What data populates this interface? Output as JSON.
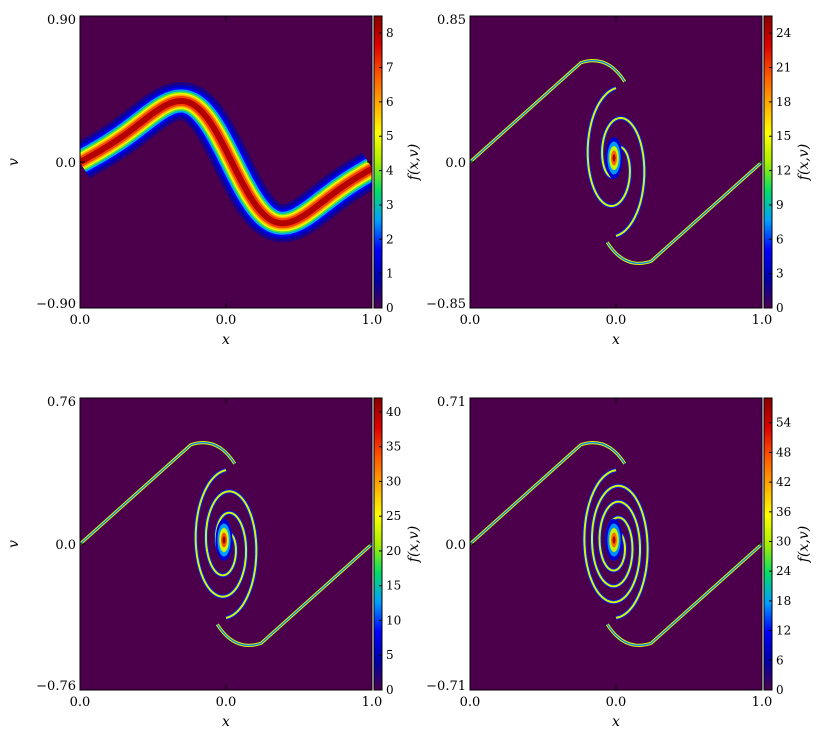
{
  "colormap": [
    "#4c004c",
    "#0000aa",
    "#0000ff",
    "#00a0ff",
    "#00dd66",
    "#aaee00",
    "#ffff00",
    "#ffaa00",
    "#ff5500",
    "#dd0000",
    "#880000"
  ],
  "background_color": "#4c004c",
  "chart_data": [
    {
      "type": "heatmap",
      "panel": "top-left",
      "xlabel": "x",
      "ylabel": "v",
      "colorbar_label": "f(x,v)",
      "xlim": [
        0.0,
        1.0
      ],
      "ylim": [
        -0.9,
        0.9
      ],
      "xtick_labels": [
        "0.0",
        "0.0",
        "1.0"
      ],
      "ytick_labels": [
        "0.90",
        "0.0",
        "−0.90"
      ],
      "colorbar_range": [
        0,
        8.5
      ],
      "colorbar_ticks": [
        "0",
        "1",
        "2",
        "3",
        "4",
        "5",
        "6",
        "7",
        "8"
      ],
      "shape": "sine-band",
      "feature": {
        "amplitude_v": 0.5,
        "peak_value": 8.5,
        "band_width": 0.06
      }
    },
    {
      "type": "heatmap",
      "panel": "top-right",
      "xlabel": "x",
      "ylabel": "",
      "colorbar_label": "f(x,v)",
      "xlim": [
        0.0,
        1.0
      ],
      "ylim": [
        -0.85,
        0.85
      ],
      "xtick_labels": [
        "0.0",
        "0.0",
        "1.0"
      ],
      "ytick_labels": [
        "0.85",
        "0.0",
        "−0.85"
      ],
      "colorbar_range": [
        0,
        25.5
      ],
      "colorbar_ticks": [
        "0",
        "3",
        "6",
        "9",
        "12",
        "15",
        "18",
        "21",
        "24"
      ],
      "shape": "spiral",
      "feature": {
        "spiral_turns": 0.5,
        "peak_value": 25
      }
    },
    {
      "type": "heatmap",
      "panel": "bottom-left",
      "xlabel": "x",
      "ylabel": "v",
      "colorbar_label": "f(x,v)",
      "xlim": [
        0.0,
        1.0
      ],
      "ylim": [
        -0.76,
        0.76
      ],
      "xtick_labels": [
        "0.0",
        "0.0",
        "1.0"
      ],
      "ytick_labels": [
        "0.76",
        "0.0",
        "−0.76"
      ],
      "colorbar_range": [
        0,
        42
      ],
      "colorbar_ticks": [
        "0",
        "5",
        "10",
        "15",
        "20",
        "25",
        "30",
        "35",
        "40"
      ],
      "shape": "spiral",
      "feature": {
        "spiral_turns": 1.0,
        "peak_value": 42
      }
    },
    {
      "type": "heatmap",
      "panel": "bottom-right",
      "xlabel": "x",
      "ylabel": "",
      "colorbar_label": "f(x,v)",
      "xlim": [
        0.0,
        1.0
      ],
      "ylim": [
        -0.71,
        0.71
      ],
      "xtick_labels": [
        "0.0",
        "0.0",
        "1.0"
      ],
      "ytick_labels": [
        "0.71",
        "0.0",
        "−0.71"
      ],
      "colorbar_range": [
        0,
        59
      ],
      "colorbar_ticks": [
        "0",
        "6",
        "12",
        "18",
        "24",
        "30",
        "36",
        "42",
        "48",
        "54"
      ],
      "shape": "spiral",
      "feature": {
        "spiral_turns": 1.6,
        "peak_value": 57
      }
    }
  ]
}
